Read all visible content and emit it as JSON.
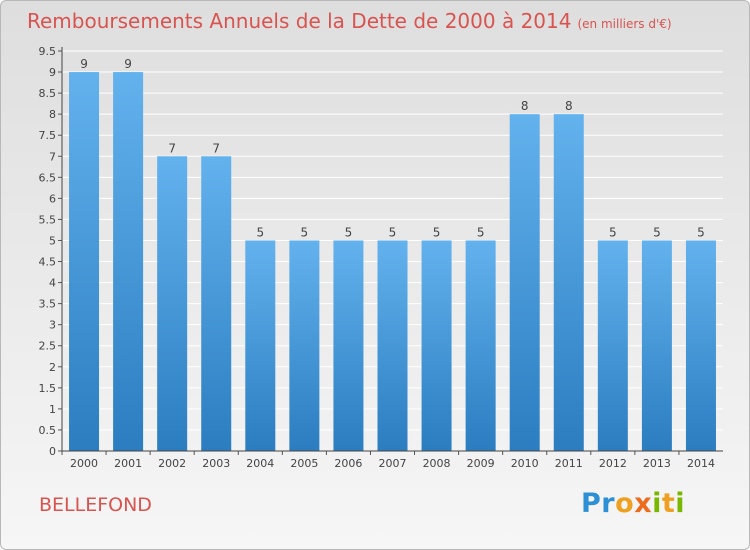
{
  "title": "Remboursements Annuels de la Dette de 2000 à 2014",
  "subtitle": "(en milliers d'€)",
  "commune": "BELLEFOND",
  "logo": {
    "text": "Proxiti",
    "colors": [
      "#2d8fd5",
      "#f0a020",
      "#ec6b1c",
      "#7ab800"
    ]
  },
  "colors": {
    "title": "#d9534f",
    "bar_light": "#63b2ee",
    "bar_dark": "#2b7dc0",
    "label": "#444444"
  },
  "chart_data": {
    "type": "bar",
    "title": "Remboursements Annuels de la Dette de 2000 à 2014",
    "subtitle": "(en milliers d'€)",
    "categories": [
      "2000",
      "2001",
      "2002",
      "2003",
      "2004",
      "2005",
      "2006",
      "2007",
      "2008",
      "2009",
      "2010",
      "2011",
      "2012",
      "2013",
      "2014"
    ],
    "values": [
      9,
      9,
      7,
      7,
      5,
      5,
      5,
      5,
      5,
      5,
      8,
      8,
      5,
      5,
      5
    ],
    "data_labels": [
      "9",
      "9",
      "7",
      "7",
      "5",
      "5",
      "5",
      "5",
      "5",
      "5",
      "8",
      "8",
      "5",
      "5",
      "5"
    ],
    "yticks": [
      "0",
      "0.5",
      "1",
      "1.5",
      "2",
      "2.5",
      "3",
      "3.5",
      "4",
      "4.5",
      "5",
      "5.5",
      "6",
      "6.5",
      "7",
      "7.5",
      "8",
      "8.5",
      "9",
      "9.5"
    ],
    "ylim": [
      0,
      9.5
    ],
    "grid": true
  }
}
